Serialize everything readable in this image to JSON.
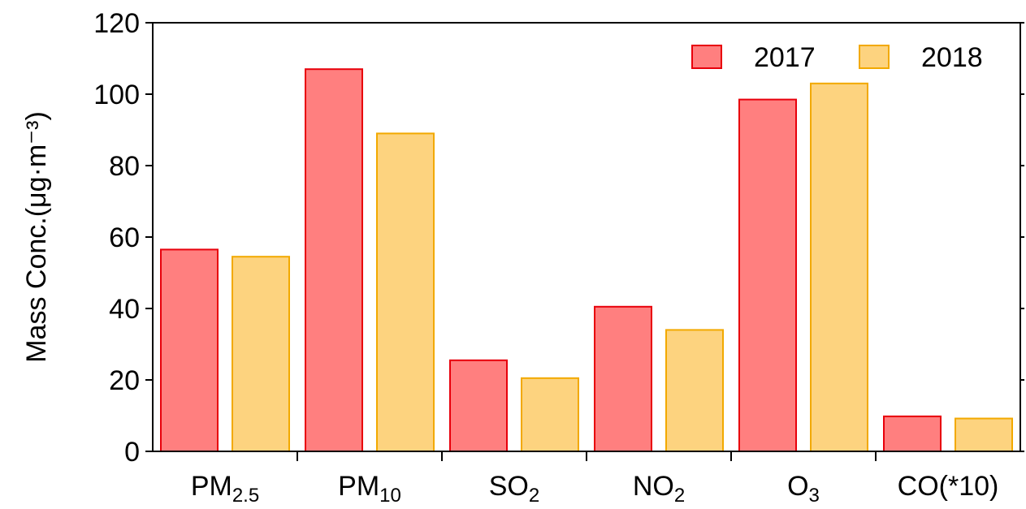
{
  "chart_data": {
    "type": "bar",
    "title": "",
    "xlabel": "",
    "ylabel": "Mass Conc.(μg·m⁻³)",
    "ylim": [
      0,
      120
    ],
    "yticks": [
      0,
      20,
      40,
      60,
      80,
      100,
      120
    ],
    "grid": false,
    "legend_position": "top-right",
    "categories": [
      {
        "base": "PM",
        "sub": "2.5",
        "rest": ""
      },
      {
        "base": "PM",
        "sub": "10",
        "rest": ""
      },
      {
        "base": "SO",
        "sub": "2",
        "rest": ""
      },
      {
        "base": "NO",
        "sub": "2",
        "rest": ""
      },
      {
        "base": "O",
        "sub": "3",
        "rest": ""
      },
      {
        "base": "CO(*10)",
        "sub": "",
        "rest": ""
      }
    ],
    "series": [
      {
        "name": "2017",
        "color": "#ff7f7f",
        "stroke": "#e8000b",
        "values": [
          56.5,
          107,
          25.5,
          40.5,
          98.5,
          9.8
        ]
      },
      {
        "name": "2018",
        "color": "#fdd37f",
        "stroke": "#f2a900",
        "values": [
          54.5,
          89,
          20.5,
          34,
          103,
          9.2
        ]
      }
    ]
  }
}
